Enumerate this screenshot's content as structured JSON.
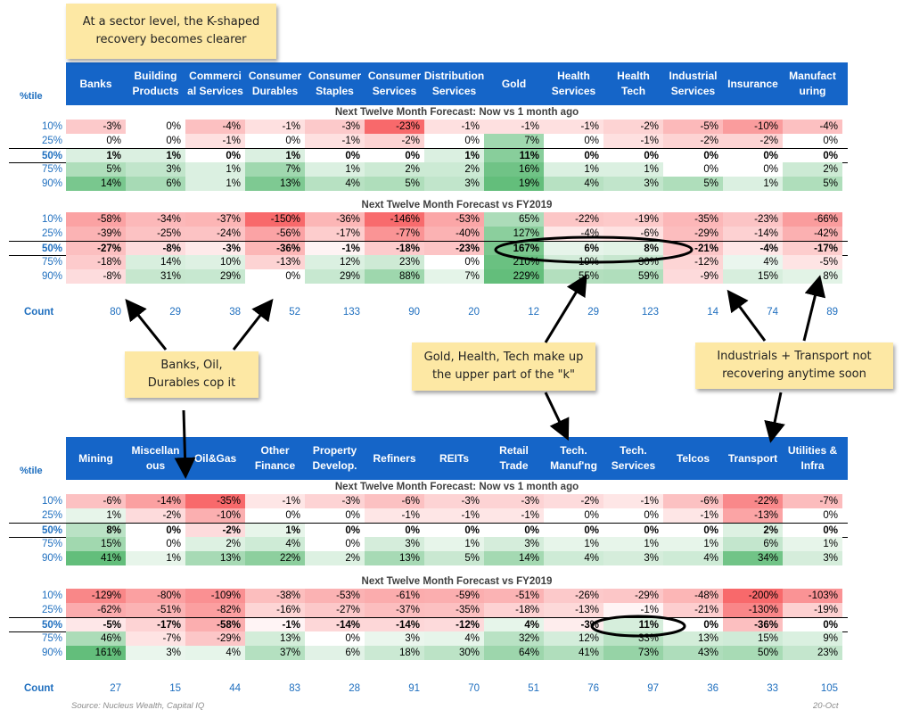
{
  "notes": {
    "title": "At a sector level, the K-shaped\nrecovery becomes clearer",
    "banks": "Banks, Oil,\nDurables cop it",
    "upper": "Gold, Health, Tech make up\nthe upper part of the \"k\"",
    "industrials": "Industrials + Transport not\nrecovering anytime soon"
  },
  "footer": {
    "source": "Source: Nucleus Wealth, Capital IQ",
    "date": "20-Oct"
  },
  "colors": {
    "header": "#1565c8",
    "negative": "#f8696b",
    "neutral": "#ffffff",
    "positive": "#63be7b",
    "label": "#1f6fbf"
  },
  "chart_data": [
    {
      "type": "heatmap",
      "pct_label": "%tile",
      "count_label": "Count",
      "columns": [
        "Banks",
        "Building\nProducts",
        "Commerci\nal Services",
        "Consumer\nDurables",
        "Consumer\nStaples",
        "Consumer\nServices",
        "Distribution\nServices",
        "Gold",
        "Health\nServices",
        "Health\nTech",
        "Industrial\nServices",
        "Insurance",
        "Manufact\nuring"
      ],
      "sections": [
        {
          "title": "Next Twelve Month Forecast: Now vs 1 month ago",
          "rows": [
            {
              "label": "10%",
              "values": [
                -3,
                0,
                -4,
                -1,
                -3,
                -23,
                -1,
                -1,
                -1,
                -2,
                -5,
                -10,
                -4
              ]
            },
            {
              "label": "25%",
              "values": [
                0,
                0,
                -1,
                0,
                -1,
                -2,
                0,
                7,
                0,
                -1,
                -2,
                -2,
                0
              ]
            },
            {
              "label": "50%",
              "values": [
                1,
                1,
                0,
                1,
                0,
                0,
                1,
                11,
                0,
                0,
                0,
                0,
                0
              ]
            },
            {
              "label": "75%",
              "values": [
                5,
                3,
                1,
                7,
                1,
                2,
                2,
                16,
                1,
                1,
                0,
                0,
                2
              ]
            },
            {
              "label": "90%",
              "values": [
                14,
                6,
                1,
                13,
                4,
                5,
                3,
                19,
                4,
                3,
                5,
                1,
                5
              ]
            }
          ]
        },
        {
          "title": "Next Twelve Month Forecast vs FY2019",
          "rows": [
            {
              "label": "10%",
              "values": [
                -58,
                -34,
                -37,
                -150,
                -36,
                -146,
                -53,
                65,
                -22,
                -19,
                -35,
                -23,
                -66
              ]
            },
            {
              "label": "25%",
              "values": [
                -39,
                -25,
                -24,
                -56,
                -17,
                -77,
                -40,
                127,
                -4,
                -6,
                -29,
                -14,
                -42
              ]
            },
            {
              "label": "50%",
              "values": [
                -27,
                -8,
                -3,
                -36,
                -1,
                -18,
                -23,
                167,
                6,
                8,
                -21,
                -4,
                -17
              ]
            },
            {
              "label": "75%",
              "values": [
                -18,
                14,
                10,
                -13,
                12,
                23,
                0,
                210,
                19,
                30,
                -12,
                4,
                -5
              ]
            },
            {
              "label": "90%",
              "values": [
                -8,
                31,
                29,
                0,
                29,
                88,
                7,
                229,
                55,
                59,
                -9,
                15,
                8
              ]
            }
          ]
        }
      ],
      "counts": [
        80,
        29,
        38,
        52,
        133,
        90,
        20,
        12,
        29,
        123,
        14,
        74,
        89
      ]
    },
    {
      "type": "heatmap",
      "pct_label": "%tile",
      "count_label": "Count",
      "columns": [
        "Mining",
        "Miscellan\nous",
        "Oil&Gas",
        "Other\nFinance",
        "Property\nDevelop.",
        "Refiners",
        "REITs",
        "Retail\nTrade",
        "Tech.\nManuf'ng",
        "Tech.\nServices",
        "Telcos",
        "Transport",
        "Utilities &\nInfra"
      ],
      "sections": [
        {
          "title": "Next Twelve Month Forecast: Now vs 1 month ago",
          "rows": [
            {
              "label": "10%",
              "values": [
                -6,
                -14,
                -35,
                -1,
                -3,
                -6,
                -3,
                -3,
                -2,
                -1,
                -6,
                -22,
                -7
              ]
            },
            {
              "label": "25%",
              "values": [
                1,
                -2,
                -10,
                0,
                0,
                -1,
                -1,
                -1,
                0,
                0,
                -1,
                -13,
                0
              ]
            },
            {
              "label": "50%",
              "values": [
                8,
                0,
                -2,
                1,
                0,
                0,
                0,
                0,
                0,
                0,
                0,
                2,
                0
              ]
            },
            {
              "label": "75%",
              "values": [
                15,
                0,
                2,
                4,
                0,
                3,
                1,
                3,
                1,
                1,
                1,
                6,
                1
              ]
            },
            {
              "label": "90%",
              "values": [
                41,
                1,
                13,
                22,
                2,
                13,
                5,
                14,
                4,
                3,
                4,
                34,
                3
              ]
            }
          ]
        },
        {
          "title": "Next Twelve Month Forecast vs FY2019",
          "rows": [
            {
              "label": "10%",
              "values": [
                -129,
                -80,
                -109,
                -38,
                -53,
                -61,
                -59,
                -51,
                -26,
                -29,
                -48,
                -200,
                -103
              ]
            },
            {
              "label": "25%",
              "values": [
                -62,
                -51,
                -82,
                -16,
                -27,
                -37,
                -35,
                -18,
                -13,
                -1,
                -21,
                -130,
                -19
              ]
            },
            {
              "label": "50%",
              "values": [
                -5,
                -17,
                -58,
                -1,
                -14,
                -14,
                -12,
                4,
                -3,
                11,
                0,
                -36,
                0
              ]
            },
            {
              "label": "75%",
              "values": [
                46,
                -7,
                -29,
                13,
                0,
                3,
                4,
                32,
                12,
                33,
                13,
                15,
                9
              ]
            },
            {
              "label": "90%",
              "values": [
                161,
                3,
                4,
                37,
                6,
                18,
                30,
                64,
                41,
                73,
                43,
                50,
                23
              ]
            }
          ]
        }
      ],
      "counts": [
        27,
        15,
        44,
        83,
        28,
        91,
        70,
        51,
        76,
        97,
        36,
        33,
        105
      ]
    }
  ]
}
